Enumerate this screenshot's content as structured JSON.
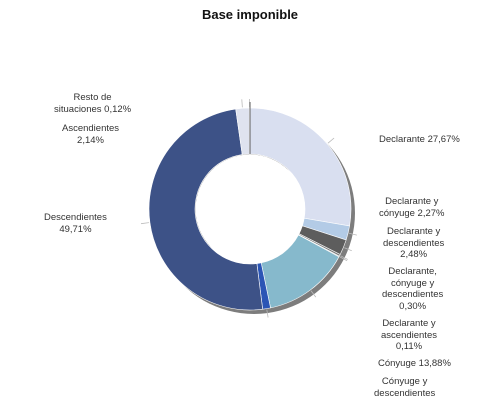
{
  "chart_data": {
    "type": "pie",
    "donut": true,
    "title": "Base imponible",
    "unit": "%",
    "slices": [
      {
        "label": "Declarante",
        "value": 27.67,
        "display": "Declarante 27,67%",
        "color": "#d9dff0"
      },
      {
        "label": "Declarante y cónyuge",
        "value": 2.27,
        "display": "Declarante y cónyuge 2,27%",
        "color": "#b3cbe6"
      },
      {
        "label": "Declarante y descendientes",
        "value": 2.48,
        "display": "Declarante y descendientes 2,48%",
        "color": "#5d5d5d"
      },
      {
        "label": "Declarante, cónyuge y descendientes",
        "value": 0.3,
        "display": "Declarante, cónyuge y descendientes 0,30%",
        "color": "#7a7a7a"
      },
      {
        "label": "Declarante y ascendientes",
        "value": 0.11,
        "display": "Declarante y ascendientes 0,11%",
        "color": "#9aa0a6"
      },
      {
        "label": "Cónyuge",
        "value": 13.88,
        "display": "Cónyuge 13,88%",
        "color": "#86b9cc"
      },
      {
        "label": "Cónyuge y descendientes",
        "value": 1.26,
        "display": "Cónyuge y descendientes",
        "color": "#2b55b5"
      },
      {
        "label": "Descendientes",
        "value": 49.71,
        "display": "Descendientes 49,71%",
        "color": "#3d5287"
      },
      {
        "label": "Ascendientes",
        "value": 2.14,
        "display": "Ascendientes 2,14%",
        "color": "#dfe3ef"
      },
      {
        "label": "Resto de situaciones",
        "value": 0.12,
        "display": "Resto de situaciones 0,12%",
        "color": "#bfc3c8"
      }
    ]
  },
  "labels": {
    "declarante": "Declarante 27,67%",
    "decl_conyuge": [
      "Declarante y",
      "cónyuge 2,27%"
    ],
    "decl_desc": [
      "Declarante y",
      "descendientes",
      "2,48%"
    ],
    "decl_cony_desc": [
      "Declarante,",
      "cónyuge y",
      "descendientes",
      "0,30%"
    ],
    "decl_asc": [
      "Declarante y",
      "ascendientes",
      "0,11%"
    ],
    "conyuge": "Cónyuge 13,88%",
    "cony_desc": [
      "Cónyuge y",
      "descendientes"
    ],
    "descendientes": [
      "Descendientes",
      "49,71%"
    ],
    "ascendientes": [
      "Ascendientes",
      "2,14%"
    ],
    "resto": [
      "Resto de",
      "situaciones 0,12%"
    ]
  }
}
